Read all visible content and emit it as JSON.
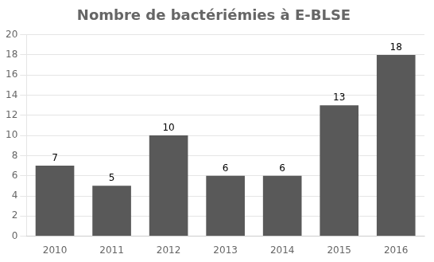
{
  "chart_data": {
    "type": "bar",
    "title": "Nombre de bactériémies à E-BLSE",
    "categories": [
      "2010",
      "2011",
      "2012",
      "2013",
      "2014",
      "2015",
      "2016"
    ],
    "values": [
      7,
      5,
      10,
      6,
      6,
      13,
      18
    ],
    "color": "#595959",
    "ylim": [
      0,
      20
    ],
    "yticks": [
      0,
      2,
      4,
      6,
      8,
      10,
      12,
      14,
      16,
      18,
      20
    ],
    "grid": true,
    "data_labels": true
  }
}
